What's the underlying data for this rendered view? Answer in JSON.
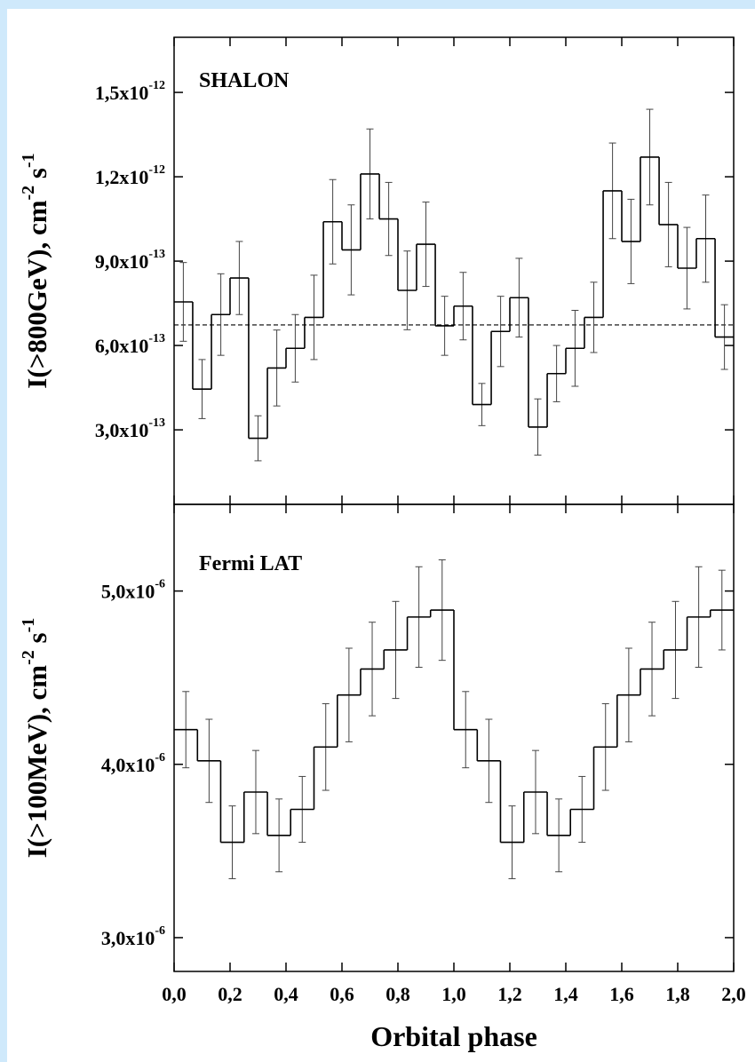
{
  "chart_data": [
    {
      "type": "step",
      "title": "SHALON",
      "ylabel": [
        "I(>800GeV), cm",
        "-2",
        " s",
        "-1"
      ],
      "xlim": [
        0,
        2
      ],
      "xticks": [
        0,
        0.2,
        0.4,
        0.6,
        0.8,
        1.0,
        1.2,
        1.4,
        1.6,
        1.8,
        2.0
      ],
      "ylim": [
        3.5e-14,
        1.696e-12
      ],
      "yticks": [
        {
          "value": 3e-13,
          "label": "3,0x10",
          "exponent": "-13"
        },
        {
          "value": 6e-13,
          "label": "6,0x10",
          "exponent": "-13"
        },
        {
          "value": 9e-13,
          "label": "9,0x10",
          "exponent": "-13"
        },
        {
          "value": 1.2e-12,
          "label": "1,2x10",
          "exponent": "-12"
        },
        {
          "value": 1.5e-12,
          "label": "1,5x10",
          "exponent": "-12"
        }
      ],
      "hline": 6.73e-13,
      "x": [
        0.033,
        0.1,
        0.167,
        0.233,
        0.3,
        0.367,
        0.433,
        0.5,
        0.567,
        0.633,
        0.7,
        0.767,
        0.833,
        0.9,
        0.967,
        1.033,
        1.1,
        1.167,
        1.233,
        1.3,
        1.367,
        1.433,
        1.5,
        1.567,
        1.633,
        1.7,
        1.767,
        1.833,
        1.9,
        1.967
      ],
      "series": [
        {
          "color": "#000000",
          "values": [
            7.55e-13,
            4.45e-13,
            7.1e-13,
            8.4e-13,
            2.7e-13,
            5.2e-13,
            5.9e-13,
            7e-13,
            1.04e-12,
            9.4e-13,
            1.21e-12,
            1.05e-12,
            7.96e-13,
            9.6e-13,
            6.7e-13,
            7.4e-13,
            3.9e-13,
            6.5e-13,
            7.7e-13,
            3.1e-13,
            5e-13,
            5.9e-13,
            7e-13,
            1.15e-12,
            9.7e-13,
            1.27e-12,
            1.03e-12,
            8.75e-13,
            9.8e-13,
            6.3e-13
          ],
          "errors": [
            1.4e-13,
            1.05e-13,
            1.45e-13,
            1.3e-13,
            8e-14,
            1.35e-13,
            1.2e-13,
            1.5e-13,
            1.5e-13,
            1.6e-13,
            1.6e-13,
            1.3e-13,
            1.4e-13,
            1.5e-13,
            1.05e-13,
            1.2e-13,
            7.5e-14,
            1.25e-13,
            1.4e-13,
            1e-13,
            1e-13,
            1.35e-13,
            1.25e-13,
            1.7e-13,
            1.5e-13,
            1.7e-13,
            1.5e-13,
            1.45e-13,
            1.55e-13,
            1.15e-13
          ]
        }
      ]
    },
    {
      "type": "step",
      "title": "Fermi LAT",
      "ylabel": [
        "I(>100MeV), cm",
        "-2",
        " s",
        "-1"
      ],
      "xlabel": "Orbital phase",
      "xlim": [
        0,
        2
      ],
      "xticks": [
        {
          "value": 0,
          "label": "0,0"
        },
        {
          "value": 0.2,
          "label": "0,2"
        },
        {
          "value": 0.4,
          "label": "0,4"
        },
        {
          "value": 0.6,
          "label": "0,6"
        },
        {
          "value": 0.8,
          "label": "0,8"
        },
        {
          "value": 1.0,
          "label": "1,0"
        },
        {
          "value": 1.2,
          "label": "1,2"
        },
        {
          "value": 1.4,
          "label": "1,4"
        },
        {
          "value": 1.6,
          "label": "1,6"
        },
        {
          "value": 1.8,
          "label": "1,8"
        },
        {
          "value": 2.0,
          "label": "2,0"
        }
      ],
      "ylim": [
        2.805e-06,
        5.5e-06
      ],
      "yticks": [
        {
          "value": 3e-06,
          "label": "3,0x10",
          "exponent": "-6"
        },
        {
          "value": 4e-06,
          "label": "4,0x10",
          "exponent": "-6"
        },
        {
          "value": 5e-06,
          "label": "5,0x10",
          "exponent": "-6"
        }
      ],
      "x": [
        0.042,
        0.125,
        0.208,
        0.292,
        0.375,
        0.458,
        0.542,
        0.625,
        0.708,
        0.792,
        0.875,
        0.958,
        1.042,
        1.125,
        1.208,
        1.292,
        1.375,
        1.458,
        1.542,
        1.625,
        1.708,
        1.792,
        1.875,
        1.958
      ],
      "series": [
        {
          "color": "#000000",
          "values": [
            4.2e-06,
            4.02e-06,
            3.55e-06,
            3.84e-06,
            3.59e-06,
            3.74e-06,
            4.1e-06,
            4.4e-06,
            4.55e-06,
            4.66e-06,
            4.85e-06,
            4.89e-06,
            4.2e-06,
            4.02e-06,
            3.55e-06,
            3.84e-06,
            3.59e-06,
            3.74e-06,
            4.1e-06,
            4.4e-06,
            4.55e-06,
            4.66e-06,
            4.85e-06,
            4.89e-06
          ],
          "errors": [
            2.2e-07,
            2.4e-07,
            2.1e-07,
            2.4e-07,
            2.1e-07,
            1.9e-07,
            2.5e-07,
            2.7e-07,
            2.7e-07,
            2.8e-07,
            2.9e-07,
            2.9e-07,
            2.2e-07,
            2.4e-07,
            2.1e-07,
            2.4e-07,
            2.1e-07,
            1.9e-07,
            2.5e-07,
            2.7e-07,
            2.7e-07,
            2.8e-07,
            2.9e-07,
            2.3e-07
          ]
        }
      ]
    }
  ]
}
